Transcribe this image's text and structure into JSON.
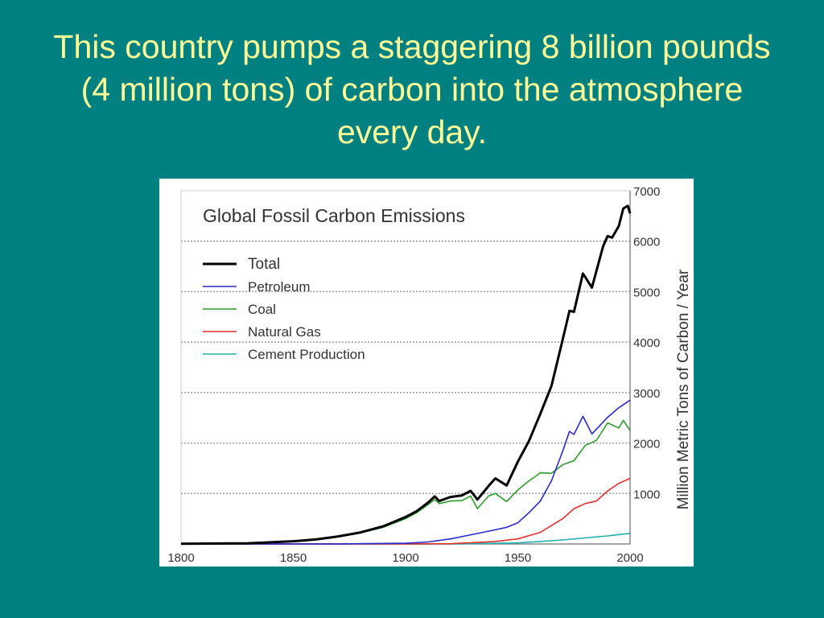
{
  "slide": {
    "title": "This country pumps a staggering 8 billion pounds (4 million tons) of carbon into the atmosphere every day."
  },
  "colors": {
    "background": "#008080",
    "title": "#ffff99"
  },
  "chart_data": {
    "type": "line",
    "title": "Global Fossil Carbon Emissions",
    "xlabel": "",
    "ylabel": "Million Metric Tons of Carbon / Year",
    "xlim": [
      1800,
      2000
    ],
    "ylim": [
      0,
      7000
    ],
    "xticks": [
      1800,
      1850,
      1900,
      1950,
      2000
    ],
    "yticks": [
      1000,
      2000,
      3000,
      4000,
      5000,
      6000,
      7000
    ],
    "grid": "horizontal dotted",
    "legend_position": "top-left",
    "series": [
      {
        "name": "Total",
        "color": "#000000",
        "x": [
          1800,
          1830,
          1850,
          1860,
          1870,
          1880,
          1890,
          1900,
          1905,
          1910,
          1913,
          1915,
          1920,
          1925,
          1929,
          1932,
          1937,
          1940,
          1945,
          1950,
          1955,
          1960,
          1965,
          1970,
          1973,
          1975,
          1979,
          1980,
          1983,
          1988,
          1990,
          1992,
          1995,
          1997,
          1999,
          2000
        ],
        "y": [
          3,
          15,
          54,
          90,
          150,
          230,
          350,
          534,
          650,
          820,
          943,
          850,
          932,
          960,
          1053,
          880,
          1150,
          1299,
          1160,
          1630,
          2043,
          2577,
          3130,
          4053,
          4620,
          4600,
          5360,
          5290,
          5080,
          5900,
          6100,
          6070,
          6300,
          6650,
          6700,
          6550
        ]
      },
      {
        "name": "Petroleum",
        "color": "#2a2ac8",
        "x": [
          1800,
          1870,
          1900,
          1910,
          1920,
          1930,
          1940,
          1945,
          1950,
          1955,
          1960,
          1965,
          1970,
          1973,
          1975,
          1979,
          1983,
          1990,
          1995,
          2000
        ],
        "y": [
          0,
          2,
          15,
          40,
          100,
          190,
          280,
          330,
          420,
          620,
          850,
          1250,
          1840,
          2230,
          2170,
          2530,
          2180,
          2510,
          2700,
          2850
        ]
      },
      {
        "name": "Coal",
        "color": "#2e9a2e",
        "x": [
          1800,
          1830,
          1850,
          1860,
          1870,
          1880,
          1890,
          1900,
          1905,
          1910,
          1913,
          1915,
          1920,
          1925,
          1929,
          1932,
          1937,
          1940,
          1945,
          1950,
          1955,
          1960,
          1965,
          1970,
          1975,
          1980,
          1985,
          1990,
          1995,
          1997,
          2000
        ],
        "y": [
          3,
          15,
          54,
          88,
          145,
          220,
          330,
          500,
          620,
          780,
          880,
          800,
          850,
          860,
          950,
          700,
          950,
          1000,
          840,
          1070,
          1250,
          1410,
          1400,
          1570,
          1650,
          1950,
          2050,
          2400,
          2300,
          2450,
          2250
        ]
      },
      {
        "name": "Natural Gas",
        "color": "#e03030",
        "x": [
          1800,
          1900,
          1920,
          1940,
          1950,
          1960,
          1970,
          1975,
          1980,
          1985,
          1990,
          1995,
          2000
        ],
        "y": [
          0,
          0,
          5,
          50,
          100,
          230,
          500,
          700,
          800,
          850,
          1050,
          1200,
          1300
        ]
      },
      {
        "name": "Cement Production",
        "color": "#20b0b0",
        "x": [
          1800,
          1920,
          1950,
          1960,
          1970,
          1980,
          1990,
          2000
        ],
        "y": [
          0,
          0,
          20,
          50,
          80,
          120,
          160,
          210
        ]
      }
    ]
  }
}
